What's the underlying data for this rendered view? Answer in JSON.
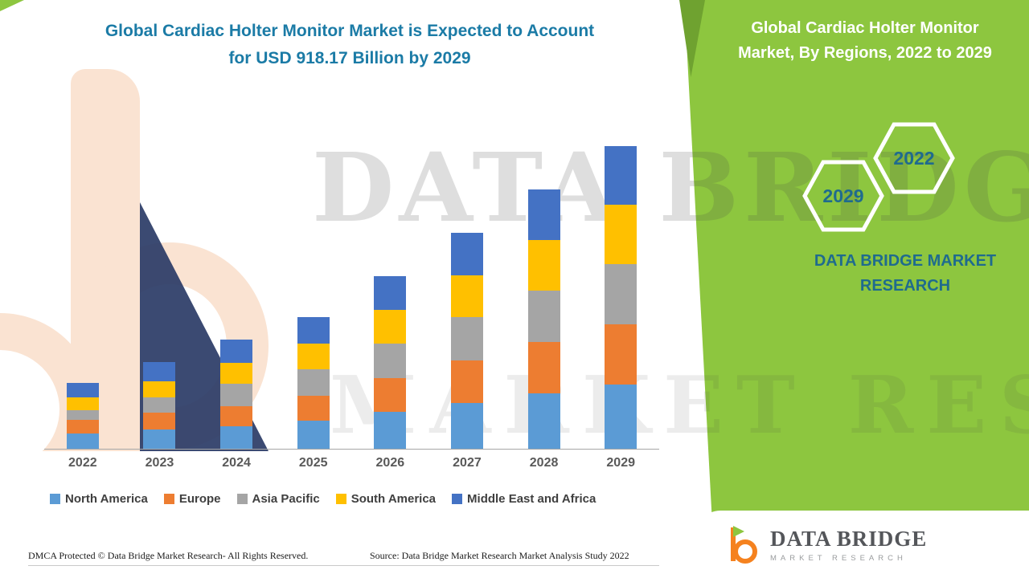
{
  "title": {
    "line1": "Global Cardiac Holter Monitor Market is Expected to Account",
    "line2": "for USD 918.17 Billion by 2029",
    "color": "#1B7BA6"
  },
  "side_panel": {
    "bg_color": "#8DC63F",
    "heading_line1": "Global Cardiac Holter Monitor",
    "heading_line2": "Market, By Regions, 2022 to 2029",
    "badges": [
      {
        "label": "2029"
      },
      {
        "label": "2022"
      }
    ],
    "brand_line1": "DATA BRIDGE MARKET",
    "brand_line2": "RESEARCH",
    "brand_color": "#1F6B8E"
  },
  "watermark": {
    "line1": "DATA BRIDGE",
    "line2": "MARKET RESEARCH"
  },
  "logo_card": {
    "name": "DATA BRIDGE",
    "subtitle": "MARKET RESEARCH"
  },
  "footer": {
    "dmca": "DMCA Protected © Data Bridge Market Research- All Rights Reserved.",
    "source": "Source: Data Bridge Market Research Market Analysis Study 2022"
  },
  "chart_data": {
    "type": "bar",
    "stacked": true,
    "title": "Global Cardiac Holter Monitor Market is Expected to Account for USD 918.17 Billion by 2029",
    "categories": [
      "2022",
      "2023",
      "2024",
      "2025",
      "2026",
      "2027",
      "2028",
      "2029"
    ],
    "series": [
      {
        "name": "North America",
        "color": "#5B9BD5",
        "values": [
          19,
          24,
          28,
          35,
          46,
          57,
          69,
          80
        ]
      },
      {
        "name": "Europe",
        "color": "#ED7D31",
        "values": [
          17,
          21,
          25,
          31,
          42,
          53,
          64,
          75
        ]
      },
      {
        "name": "Asia Pacific",
        "color": "#A5A5A5",
        "values": [
          12,
          19,
          28,
          33,
          43,
          54,
          64,
          75
        ]
      },
      {
        "name": "South America",
        "color": "#FFC000",
        "values": [
          16,
          20,
          26,
          32,
          42,
          52,
          63,
          74
        ]
      },
      {
        "name": "Middle East and Africa",
        "color": "#4472C4",
        "values": [
          18,
          24,
          29,
          33,
          42,
          53,
          63,
          73
        ]
      }
    ],
    "xlabel": "",
    "ylabel": "",
    "y_axis": {
      "visible": false,
      "note": "no y-axis shown; values are relative stacked heights"
    },
    "legend_position": "bottom",
    "grid": false
  }
}
